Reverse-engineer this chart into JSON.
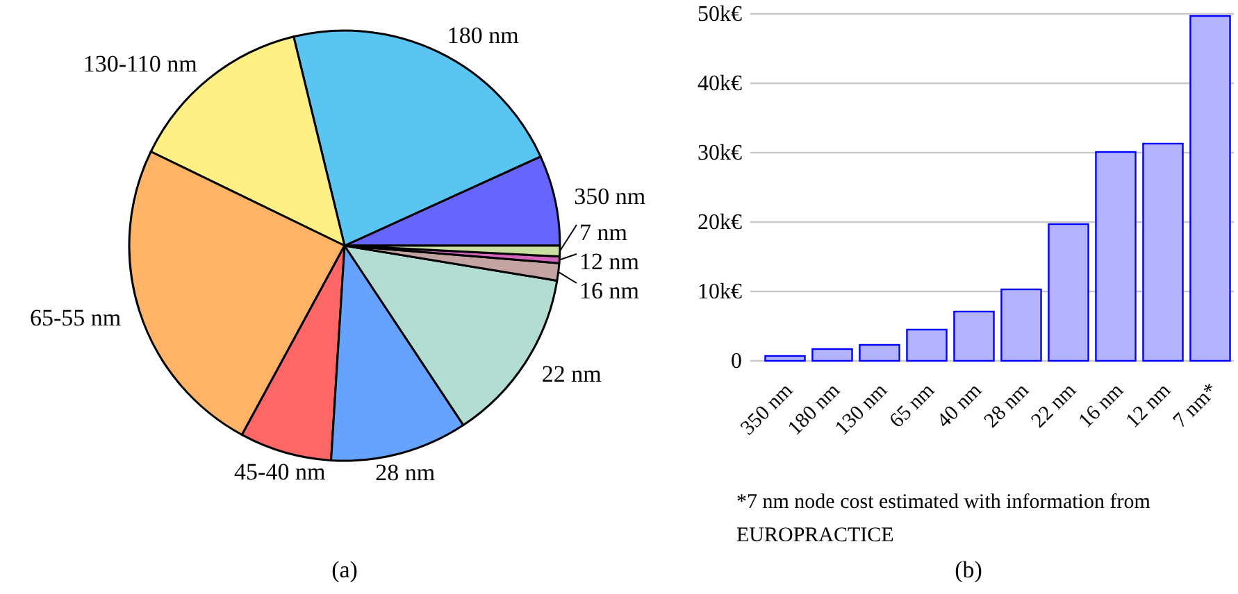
{
  "chart_data": [
    {
      "type": "pie",
      "categories": [
        "350 nm",
        "180 nm",
        "130-110 nm",
        "65-55 nm",
        "45-40 nm",
        "28 nm",
        "22 nm",
        "16 nm",
        "12 nm",
        "7 nm"
      ],
      "values": [
        6.8,
        22,
        14,
        24.3,
        6.9,
        10.3,
        13.1,
        1.3,
        0.5,
        0.8
      ],
      "colors": [
        "#6666ff",
        "#5bc5f2",
        "#fff085",
        "#ffb366",
        "#ff6666",
        "#66a3ff",
        "#b3dcd2",
        "#c4a3a3",
        "#d466c0",
        "#c8e0a0"
      ],
      "annotations": [
        "(a)"
      ]
    },
    {
      "type": "bar",
      "categories": [
        "350 nm",
        "180 nm",
        "130 nm",
        "65 nm",
        "40 nm",
        "28 nm",
        "22 nm",
        "16 nm",
        "12 nm",
        "7 nm*"
      ],
      "values": [
        0.7,
        1.7,
        2.3,
        4.5,
        7.1,
        10.3,
        19.7,
        30.1,
        31.3,
        49.7
      ],
      "color": "#b3b3ff",
      "ylim": [
        0,
        50
      ],
      "yticks": [
        0,
        {
          "value": 10,
          "label": "10k€"
        },
        {
          "value": 20,
          "label": "20k€"
        },
        {
          "value": 30,
          "label": "30k€"
        },
        {
          "value": 40,
          "label": "40k€"
        },
        {
          "value": 50,
          "label": "50k€"
        }
      ],
      "grid": "y",
      "annotations": [
        "*7 nm node cost estimated with information from EUROPRACTICE",
        "(b)"
      ]
    }
  ]
}
